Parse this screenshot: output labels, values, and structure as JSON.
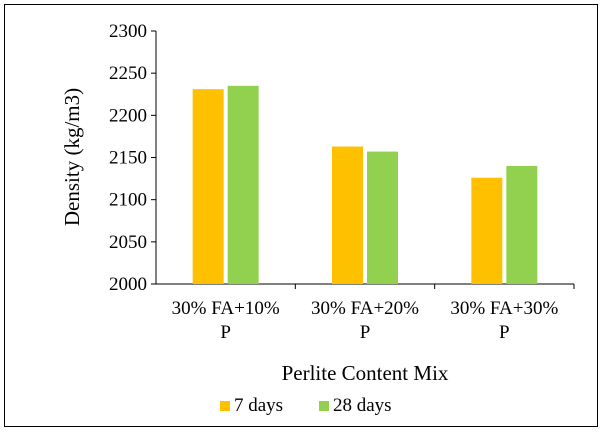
{
  "chart_data": {
    "type": "bar",
    "title": "",
    "xlabel": "Perlite Content Mix",
    "ylabel": "Density (kg/m3)",
    "ylim": [
      2000,
      2300
    ],
    "yticks": [
      2000,
      2050,
      2100,
      2150,
      2200,
      2250,
      2300
    ],
    "grid": false,
    "legend_position": "bottom",
    "categories": [
      [
        "30% FA+10%",
        "P"
      ],
      [
        "30% FA+20%",
        "P"
      ],
      [
        "30% FA+30%",
        "P"
      ]
    ],
    "series": [
      {
        "name": "7 days",
        "color": "#FFC000",
        "values": [
          2231,
          2163,
          2126
        ]
      },
      {
        "name": "28 days",
        "color": "#92D050",
        "values": [
          2235,
          2157,
          2140
        ]
      }
    ]
  }
}
